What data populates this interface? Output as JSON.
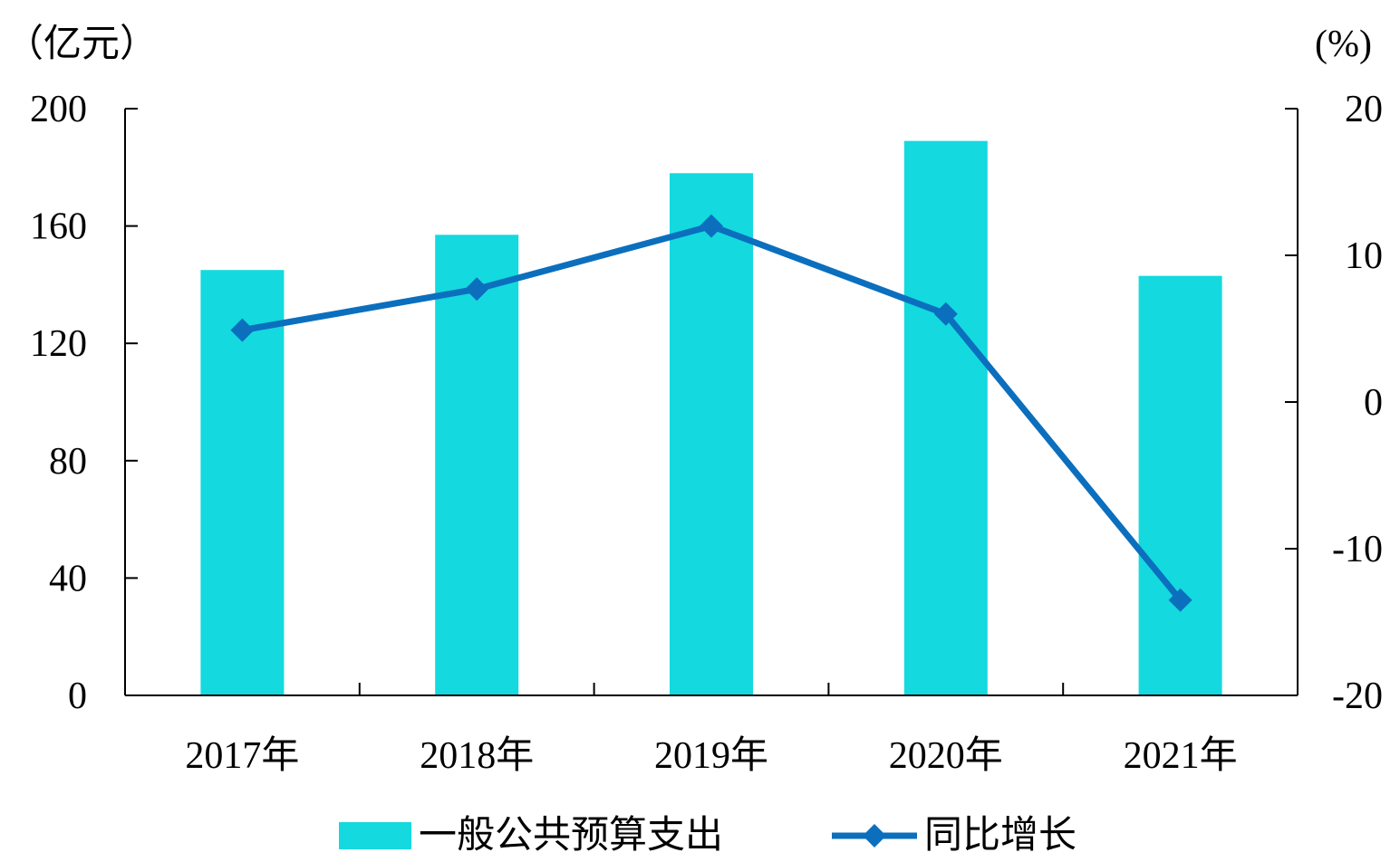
{
  "chart_data": {
    "type": "bar+line",
    "categories": [
      "2017年",
      "2018年",
      "2019年",
      "2020年",
      "2021年"
    ],
    "series": [
      {
        "name": "一般公共预算支出",
        "type": "bar",
        "axis": "left",
        "color": "#14D9DF",
        "values": [
          145,
          157,
          178,
          189,
          143
        ]
      },
      {
        "name": "同比增长",
        "type": "line",
        "axis": "right",
        "color": "#0B6FBE",
        "marker": "diamond",
        "values": [
          4.9,
          7.7,
          12.0,
          6.0,
          -13.5
        ]
      }
    ],
    "left_axis": {
      "unit": "（亿元）",
      "ylim": [
        0,
        200
      ],
      "ticks": [
        0,
        40,
        80,
        120,
        160,
        200
      ]
    },
    "right_axis": {
      "unit": "(%)",
      "ylim": [
        -20,
        20
      ],
      "ticks": [
        -20,
        -10,
        0,
        10,
        20
      ]
    },
    "grid": false,
    "legend": "bottom"
  }
}
